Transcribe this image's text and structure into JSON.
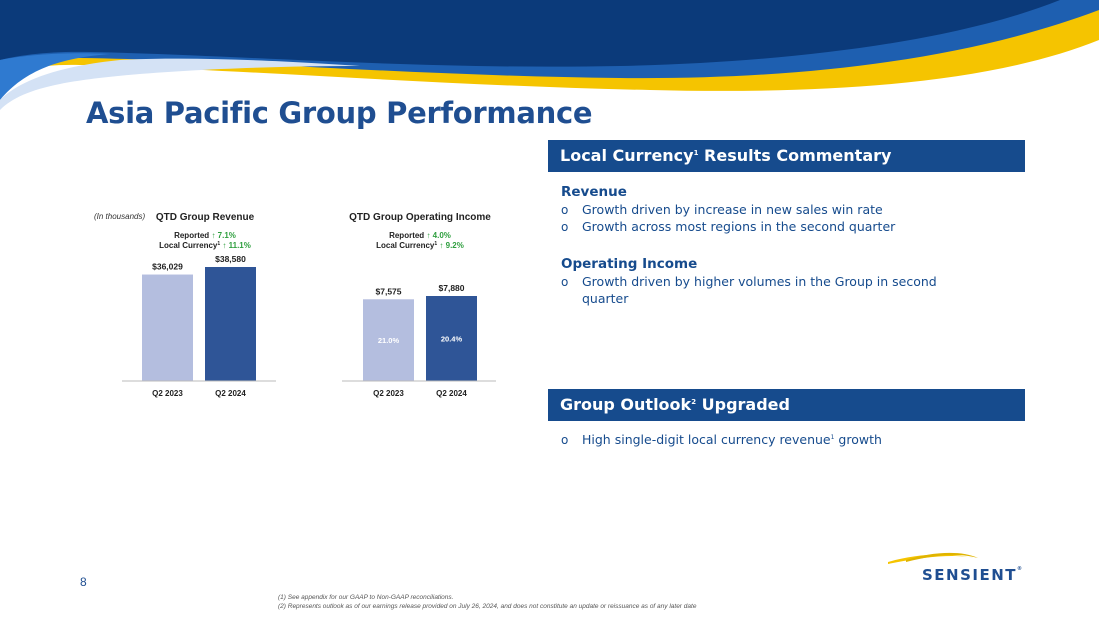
{
  "title": "Asia Pacific Group Performance",
  "page_number": "8",
  "colors": {
    "brand_blue": "#164b8d",
    "title_blue": "#1f4e91",
    "bar_light": "#b4bedf",
    "bar_dark": "#2f5597",
    "growth_green": "#2e9e3e",
    "accent_yellow": "#f5c400"
  },
  "chart_data": [
    {
      "type": "bar",
      "title": "QTD Group Revenue",
      "note": "(In thousands)",
      "growth": {
        "reported_label": "Reported",
        "reported_value": "↑ 7.1%",
        "local_label": "Local Currency",
        "local_sup": "1",
        "local_value": "↑ 11.1%"
      },
      "categories": [
        "Q2 2023",
        "Q2 2024"
      ],
      "values": [
        36029,
        38580
      ],
      "value_labels": [
        "$36,029",
        "$38,580"
      ],
      "inner_labels": [
        "",
        ""
      ]
    },
    {
      "type": "bar",
      "title": "QTD Group Operating Income",
      "growth": {
        "reported_label": "Reported",
        "reported_value": "↑ 4.0%",
        "local_label": "Local Currency",
        "local_sup": "1",
        "local_value": "↑ 9.2%"
      },
      "categories": [
        "Q2 2023",
        "Q2 2024"
      ],
      "values": [
        7575,
        7880
      ],
      "value_labels": [
        "$7,575",
        "$7,880"
      ],
      "inner_labels": [
        "21.0%",
        "20.4%"
      ]
    }
  ],
  "commentary": {
    "header": {
      "text_a": "Local Currency",
      "sup": "1",
      "text_b": " Results Commentary"
    },
    "revenue": {
      "heading": "Revenue",
      "bullets": [
        "Growth driven by increase in new sales win rate",
        "Growth across most regions in the second quarter"
      ]
    },
    "operating_income": {
      "heading": "Operating Income",
      "bullets": [
        "Growth driven by higher volumes in the Group in second quarter"
      ]
    }
  },
  "outlook": {
    "header": {
      "text_a": "Group Outlook",
      "sup": "2",
      "text_b": " Upgraded"
    },
    "bullet": {
      "text_a": "High single-digit local currency revenue",
      "sup": "1",
      "text_b": " growth"
    }
  },
  "footnotes": [
    "(1) See appendix for our GAAP to Non-GAAP reconciliations.",
    "(2) Represents outlook as of our earnings release provided on July 26, 2024, and does not constitute an update or reissuance as of any later date"
  ],
  "logo": {
    "text": "SENSIENT",
    "mark": "®"
  }
}
